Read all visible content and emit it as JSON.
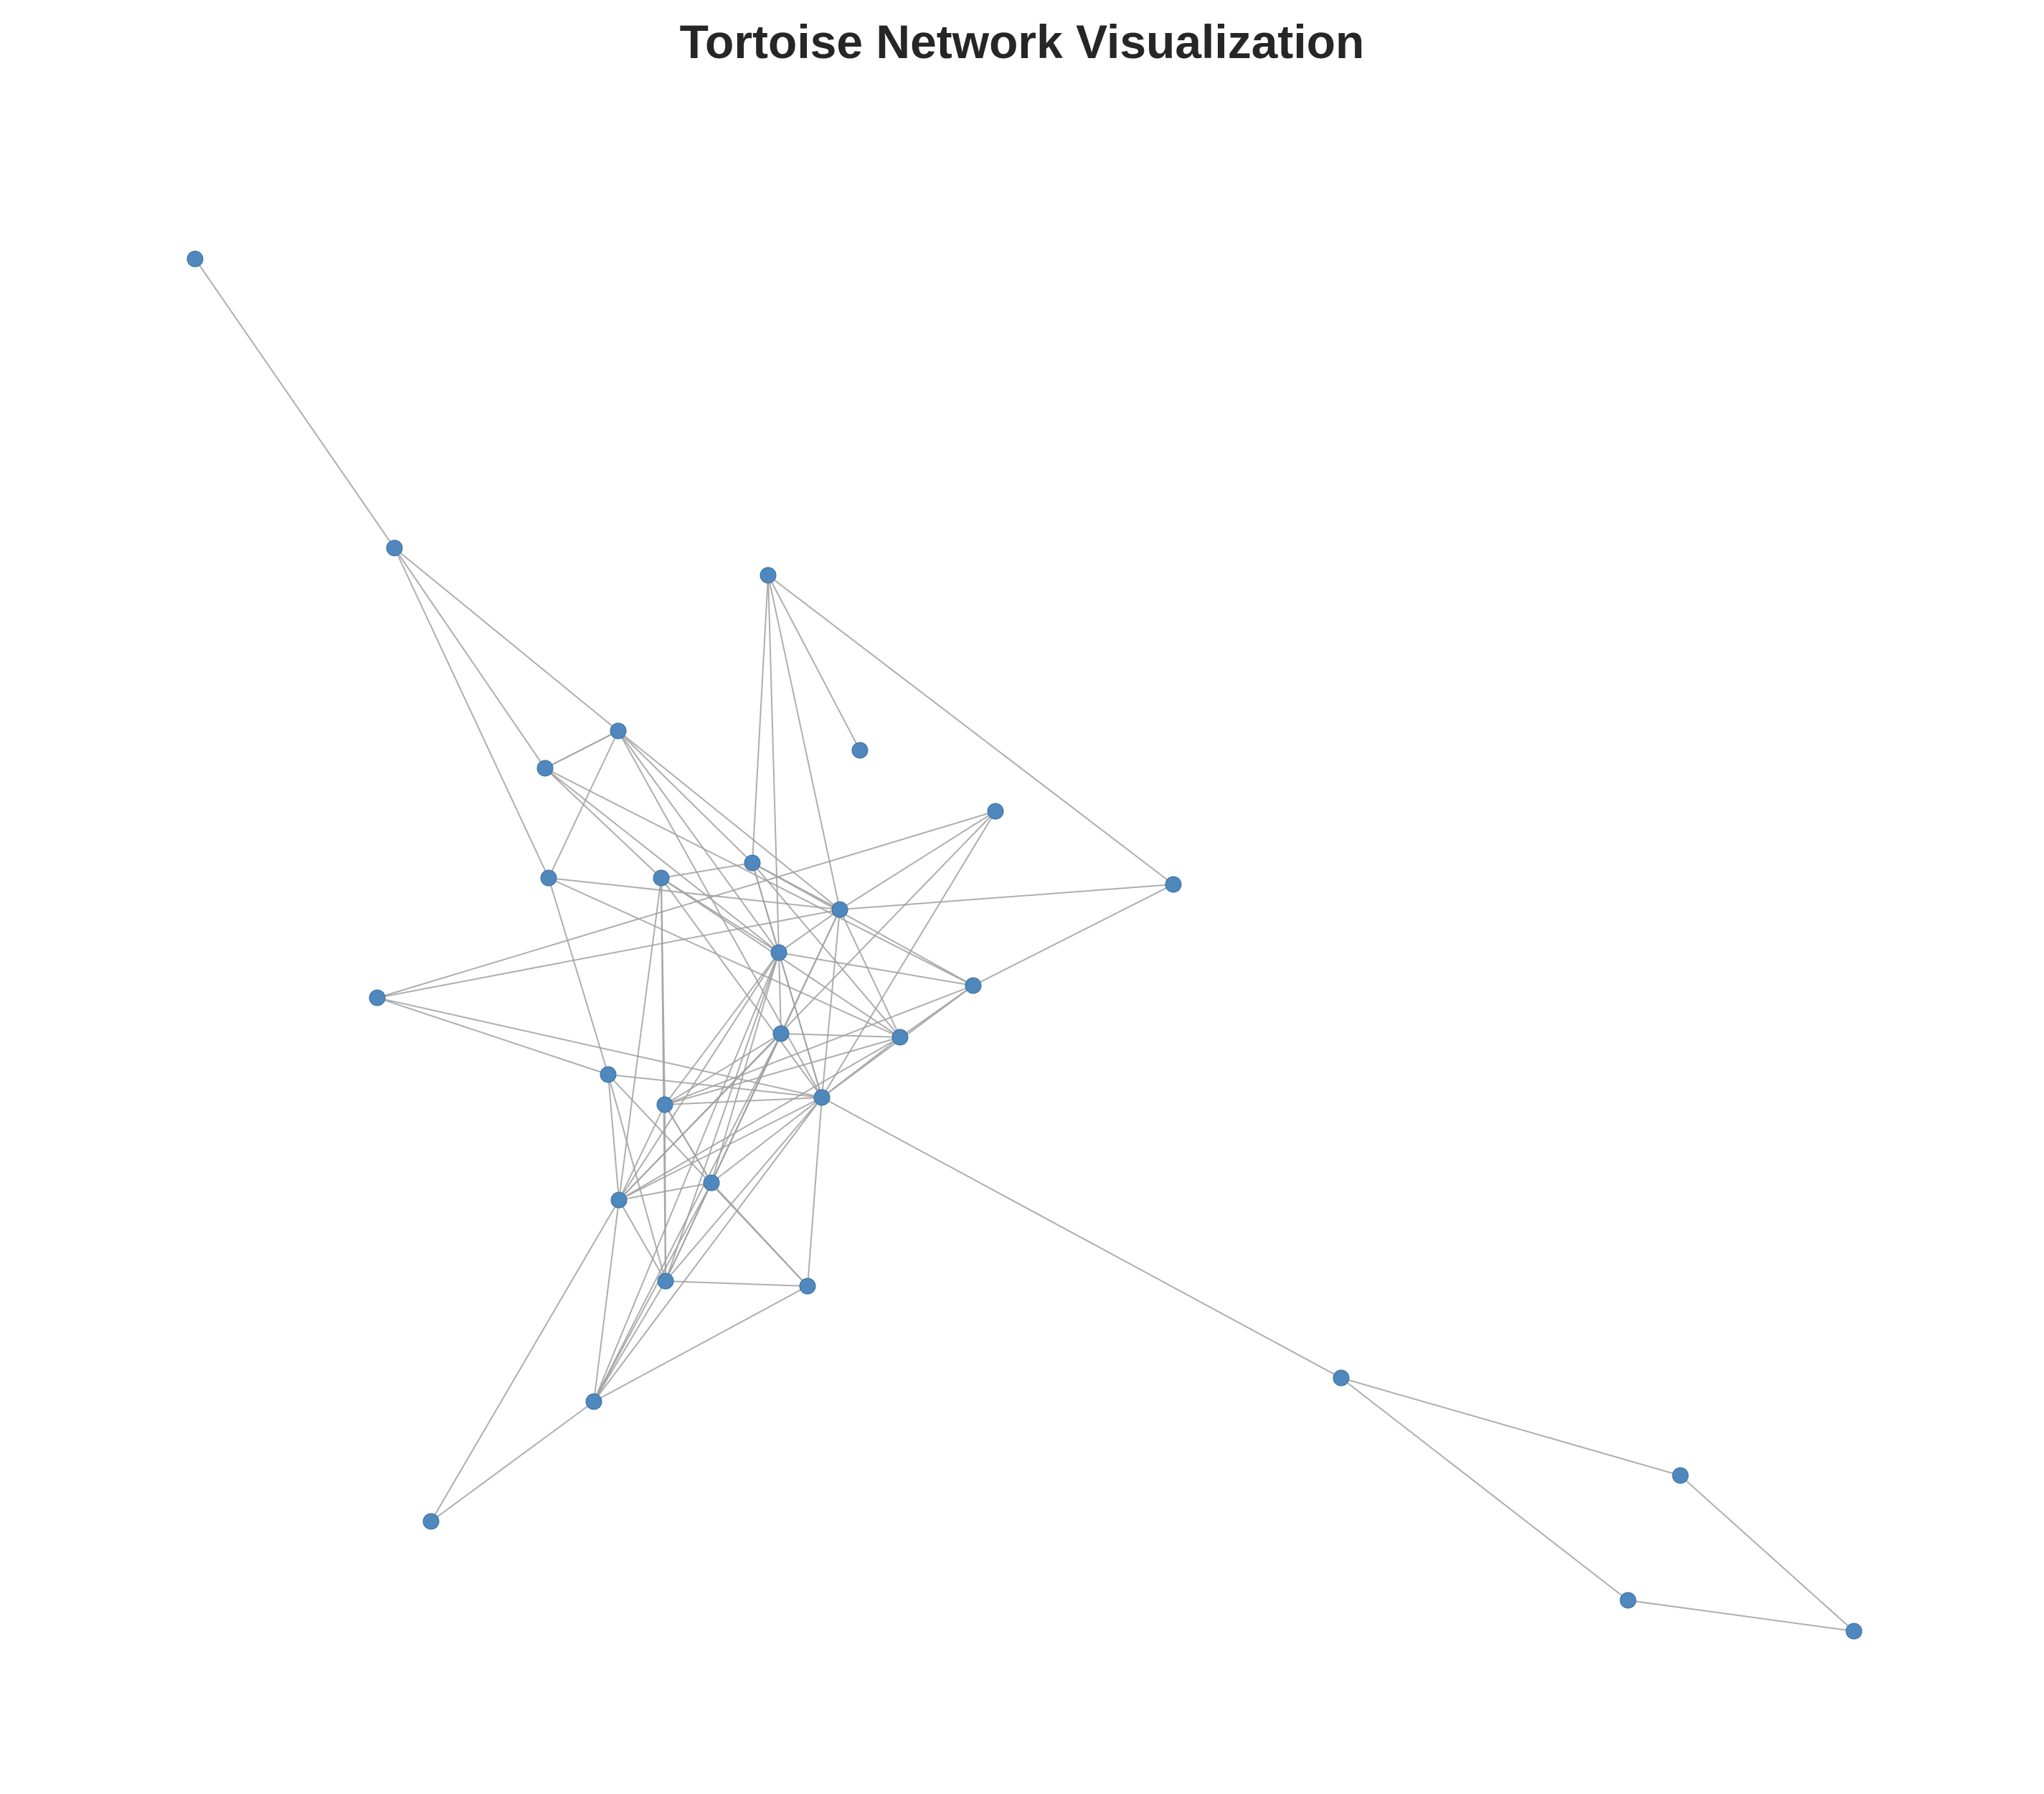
{
  "title": "Tortoise Network Visualization",
  "colors": {
    "node": "#4f88bd",
    "edge": "#a0a0a0",
    "title": "#262626",
    "background": "#ffffff"
  },
  "network": {
    "node_count": 32,
    "edge_count": 99
  }
}
